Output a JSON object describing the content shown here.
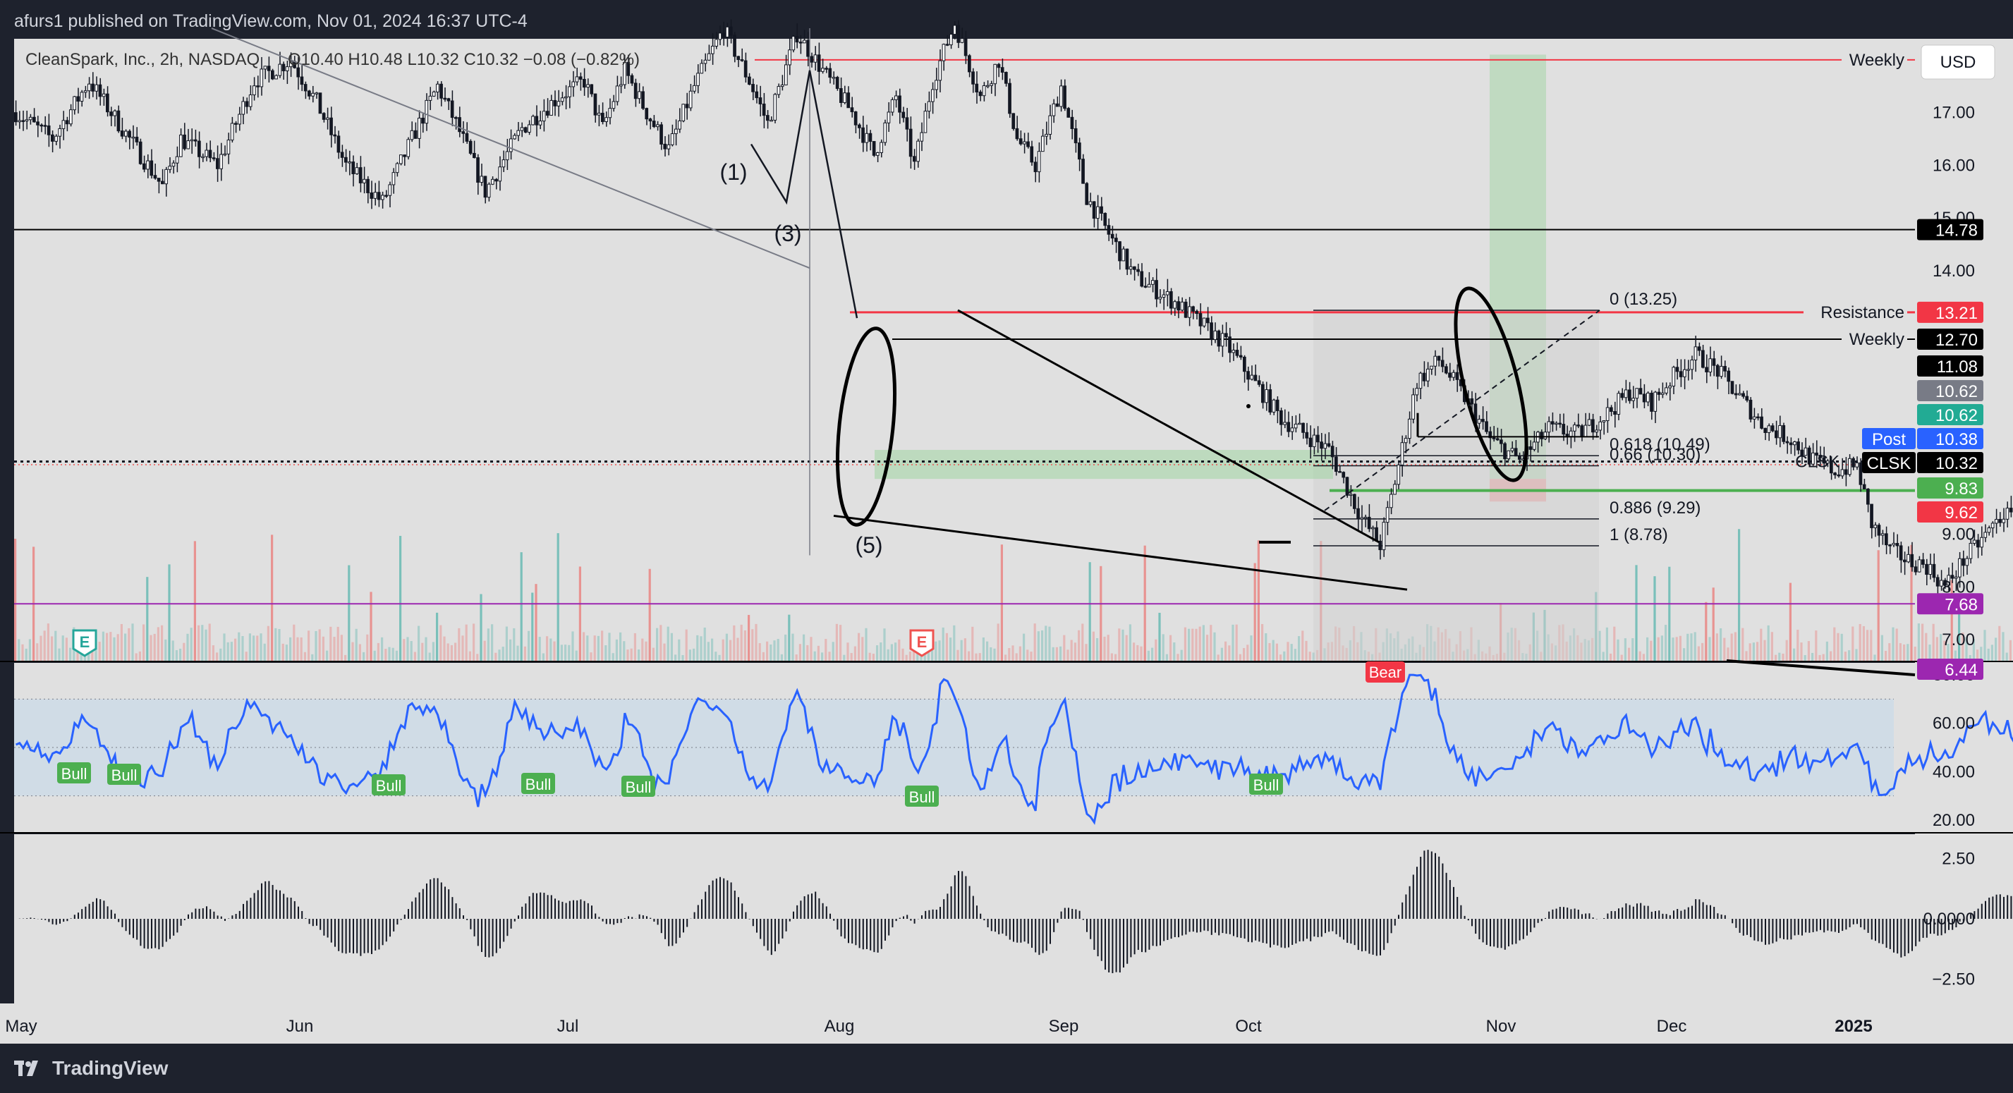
{
  "header": {
    "published": "afurs1 published on TradingView.com, Nov 01, 2024 16:37 UTC-4"
  },
  "legend": {
    "symbol": "CleanSpark, Inc., 2h, NASDAQ",
    "ohlc": "O10.40  H10.48  L10.32  C10.32  −0.08 (−0.82%)"
  },
  "currency_button": "USD",
  "footer": {
    "brand": "TradingView"
  },
  "colors": {
    "background": "#e0e0e0",
    "resistance": "#f23645",
    "bull": "#26a69a",
    "bear": "#ef5350",
    "rsi": "#2962ff",
    "support_green": "#4caf50",
    "purple": "#9c27b0"
  },
  "chart_data": [
    {
      "type": "candlestick",
      "panel": "price",
      "ylim": [
        6.6,
        18.4
      ],
      "yticks": [
        "17.00",
        "16.00",
        "15.00",
        "14.00",
        "9.00",
        "8.00",
        "7.00"
      ],
      "x_months": [
        "May",
        "Jun",
        "Jul",
        "Aug",
        "Sep",
        "Oct",
        "Nov",
        "Dec",
        "2025"
      ],
      "path": [
        [
          0,
          17.0
        ],
        [
          10,
          16.5
        ],
        [
          20,
          17.6
        ],
        [
          30,
          16.6
        ],
        [
          40,
          15.6
        ],
        [
          45,
          16.5
        ],
        [
          55,
          16.0
        ],
        [
          65,
          17.6
        ],
        [
          75,
          18.0
        ],
        [
          82,
          17.2
        ],
        [
          90,
          16.0
        ],
        [
          100,
          15.3
        ],
        [
          108,
          16.5
        ],
        [
          115,
          17.5
        ],
        [
          120,
          16.8
        ],
        [
          128,
          15.5
        ],
        [
          138,
          16.7
        ],
        [
          148,
          17.3
        ],
        [
          155,
          17.6
        ],
        [
          160,
          16.7
        ],
        [
          166,
          17.8
        ],
        [
          172,
          17.0
        ],
        [
          178,
          16.3
        ],
        [
          185,
          17.5
        ],
        [
          193,
          18.6
        ],
        [
          200,
          17.6
        ],
        [
          205,
          16.8
        ],
        [
          213,
          18.5
        ],
        [
          220,
          17.8
        ],
        [
          228,
          17.0
        ],
        [
          234,
          16.2
        ],
        [
          240,
          17.3
        ],
        [
          245,
          16.0
        ],
        [
          250,
          17.6
        ],
        [
          256,
          18.7
        ],
        [
          263,
          17.3
        ],
        [
          268,
          18.0
        ],
        [
          273,
          16.5
        ],
        [
          278,
          16.0
        ],
        [
          285,
          17.5
        ],
        [
          292,
          15.4
        ],
        [
          298,
          14.7
        ],
        [
          305,
          13.9
        ],
        [
          316,
          13.4
        ],
        [
          330,
          12.6
        ],
        [
          345,
          11.2
        ],
        [
          358,
          10.6
        ],
        [
          367,
          9.3
        ],
        [
          372,
          8.8
        ],
        [
          376,
          10.0
        ],
        [
          382,
          11.9
        ],
        [
          388,
          12.3
        ],
        [
          395,
          11.6
        ],
        [
          402,
          10.8
        ],
        [
          410,
          10.4
        ],
        [
          418,
          11.0
        ],
        [
          426,
          10.9
        ],
        [
          434,
          11.3
        ],
        [
          440,
          11.7
        ],
        [
          446,
          11.5
        ],
        [
          452,
          12.0
        ],
        [
          458,
          12.4
        ],
        [
          464,
          12.1
        ],
        [
          470,
          11.6
        ],
        [
          476,
          11.1
        ],
        [
          484,
          10.8
        ],
        [
          490,
          10.4
        ],
        [
          496,
          10.2
        ],
        [
          502,
          10.3
        ],
        [
          506,
          9.2
        ],
        [
          511,
          8.7
        ],
        [
          516,
          8.5
        ],
        [
          521,
          8.4
        ],
        [
          526,
          8.0
        ],
        [
          531,
          8.5
        ],
        [
          536,
          8.9
        ],
        [
          542,
          9.4
        ],
        [
          548,
          9.1
        ],
        [
          554,
          9.6
        ],
        [
          560,
          9.2
        ],
        [
          566,
          9.4
        ],
        [
          572,
          9.1
        ],
        [
          578,
          9.5
        ],
        [
          584,
          9.2
        ],
        [
          590,
          9.7
        ],
        [
          596,
          10.1
        ],
        [
          600,
          10.3
        ],
        [
          606,
          9.8
        ],
        [
          612,
          9.0
        ],
        [
          616,
          8.6
        ],
        [
          620,
          8.4
        ],
        [
          624,
          8.8
        ],
        [
          628,
          9.0
        ],
        [
          634,
          9.6
        ],
        [
          640,
          9.4
        ],
        [
          646,
          9.0
        ],
        [
          650,
          8.9
        ],
        [
          656,
          8.7
        ],
        [
          662,
          9.5
        ],
        [
          668,
          10.4
        ],
        [
          674,
          11.3
        ],
        [
          680,
          11.9
        ],
        [
          686,
          12.3
        ],
        [
          690,
          12.6
        ],
        [
          696,
          12.2
        ],
        [
          702,
          11.8
        ],
        [
          708,
          11.3
        ],
        [
          714,
          11.5
        ],
        [
          718,
          12.0
        ],
        [
          722,
          12.4
        ],
        [
          726,
          13.1
        ],
        [
          732,
          12.7
        ],
        [
          736,
          11.9
        ],
        [
          740,
          11.7
        ],
        [
          744,
          10.7
        ],
        [
          748,
          10.0
        ],
        [
          752,
          10.3
        ]
      ],
      "candle_step": 5.2,
      "horizontal_lines": [
        {
          "label": "Weekly",
          "price": 18.0,
          "color": "#f23645"
        },
        {
          "label": "",
          "price": 14.78,
          "color": "#000000"
        },
        {
          "label": "Resistance",
          "price": 13.21,
          "color": "#f23645"
        },
        {
          "label": "Weekly",
          "price": 12.7,
          "color": "#000000"
        },
        {
          "label": "",
          "price": 7.68,
          "color": "#9c27b0"
        }
      ],
      "fib_levels": [
        {
          "label": "0 (13.25)",
          "price": 13.25
        },
        {
          "label": "0.618 (10.49)",
          "price": 10.49
        },
        {
          "label": "0.66 (10.30)",
          "price": 10.3
        },
        {
          "label": "0.886 (9.29)",
          "price": 9.29
        },
        {
          "label": "1 (8.78)",
          "price": 8.78
        }
      ],
      "price_badges": [
        {
          "text": "14.78",
          "price": 14.78,
          "bg": "#000000",
          "fg": "#ffffff"
        },
        {
          "text": "13.21",
          "price": 13.21,
          "bg": "#f23645",
          "fg": "#ffffff"
        },
        {
          "text": "12.70",
          "price": 12.7,
          "bg": "#000000",
          "fg": "#ffffff"
        },
        {
          "text": "11.08",
          "price": 11.08,
          "bg": "#000000",
          "fg": "#ffffff"
        },
        {
          "text": "10.62",
          "price": 10.62,
          "bg": "#787b86",
          "fg": "#ffffff"
        },
        {
          "text": "10.62",
          "price": 10.62,
          "bg": "#22ab94",
          "fg": "#ffffff"
        },
        {
          "text": "10.38",
          "price": 10.38,
          "bg": "#2962ff",
          "fg": "#ffffff",
          "tag": "Post"
        },
        {
          "text": "10.32",
          "price": 10.32,
          "bg": "#000000",
          "fg": "#ffffff",
          "tag": "CLSK"
        },
        {
          "text": "9.83",
          "price": 9.83,
          "bg": "#4caf50",
          "fg": "#ffffff"
        },
        {
          "text": "9.62",
          "price": 9.62,
          "bg": "#f23645",
          "fg": "#ffffff"
        },
        {
          "text": "7.68",
          "price": 7.68,
          "bg": "#9c27b0",
          "fg": "#ffffff"
        },
        {
          "text": "6.44",
          "price": 6.44,
          "bg": "#9c27b0",
          "fg": "#ffffff"
        }
      ],
      "labels": {
        "clsk_line": "CLSK",
        "wave_1": "(1)",
        "wave_3": "(3)",
        "wave_5": "(5)",
        "earnings": "E"
      },
      "position": {
        "entry": 10.05,
        "target": 18.1,
        "stop": 9.62
      }
    },
    {
      "type": "line",
      "panel": "rsi",
      "ylim": [
        15,
        85
      ],
      "yticks": [
        "80.00",
        "60.00",
        "40.00",
        "20.00"
      ],
      "band": [
        30,
        70
      ],
      "divergence_labels": [
        "Bull",
        "Bull",
        "Bull",
        "Bull",
        "Bull",
        "Bull",
        "Bull",
        "Bear"
      ]
    },
    {
      "type": "bar",
      "panel": "oscillator",
      "ylim": [
        -3.5,
        3.5
      ],
      "yticks": [
        "2.50",
        "0.0000",
        "−2.50"
      ]
    }
  ]
}
